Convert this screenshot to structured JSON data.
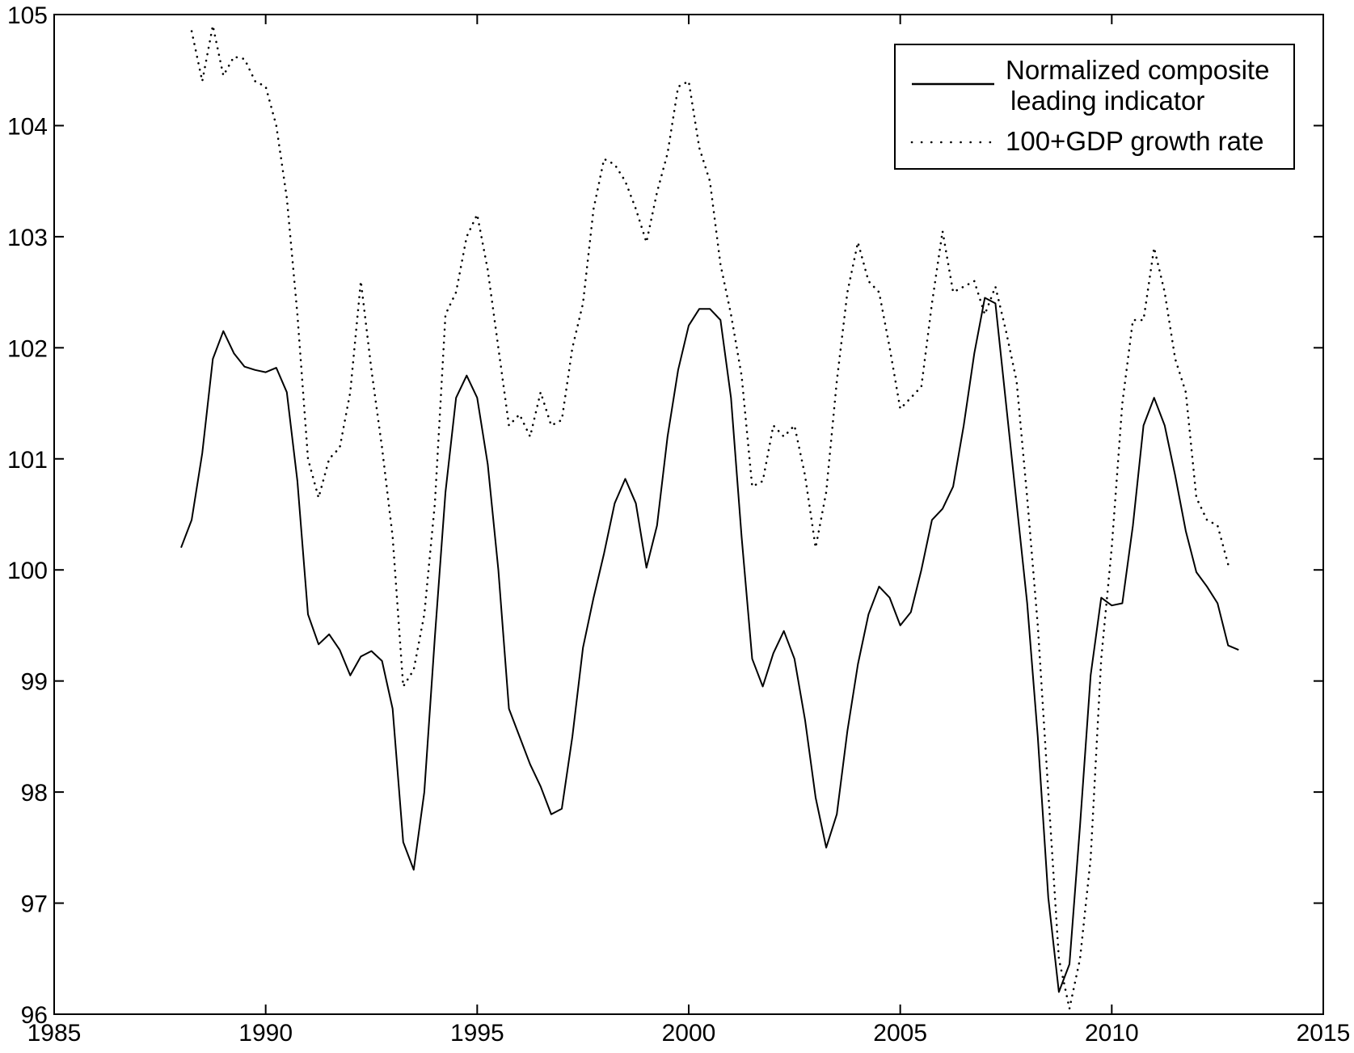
{
  "chart_data": {
    "type": "line",
    "title": "",
    "xlabel": "",
    "ylabel": "",
    "xlim": [
      1985,
      2015
    ],
    "ylim": [
      96,
      105
    ],
    "x_ticks": [
      "1985",
      "1990",
      "1995",
      "2000",
      "2005",
      "2010",
      "2015"
    ],
    "y_ticks": [
      "96",
      "97",
      "98",
      "99",
      "100",
      "101",
      "102",
      "103",
      "104",
      "105"
    ],
    "grid": false,
    "legend": {
      "position": "top-right",
      "entries": [
        {
          "line1": "Normalized composite",
          "line2": "leading indicator"
        },
        {
          "line1": "100+GDP growth rate",
          "line2": ""
        }
      ]
    },
    "series": [
      {
        "name": "Normalized composite leading indicator",
        "style": "solid",
        "color": "#000000",
        "points": [
          [
            1988.0,
            100.2
          ],
          [
            1988.25,
            100.45
          ],
          [
            1988.5,
            101.05
          ],
          [
            1988.75,
            101.9
          ],
          [
            1989.0,
            102.15
          ],
          [
            1989.25,
            101.95
          ],
          [
            1989.5,
            101.83
          ],
          [
            1989.75,
            101.8
          ],
          [
            1990.0,
            101.78
          ],
          [
            1990.25,
            101.82
          ],
          [
            1990.5,
            101.6
          ],
          [
            1990.75,
            100.8
          ],
          [
            1991.0,
            99.6
          ],
          [
            1991.25,
            99.33
          ],
          [
            1991.5,
            99.42
          ],
          [
            1991.75,
            99.28
          ],
          [
            1992.0,
            99.05
          ],
          [
            1992.25,
            99.22
          ],
          [
            1992.5,
            99.27
          ],
          [
            1992.75,
            99.18
          ],
          [
            1993.0,
            98.75
          ],
          [
            1993.25,
            97.55
          ],
          [
            1993.5,
            97.3
          ],
          [
            1993.75,
            98.0
          ],
          [
            1994.0,
            99.4
          ],
          [
            1994.25,
            100.7
          ],
          [
            1994.5,
            101.55
          ],
          [
            1994.75,
            101.75
          ],
          [
            1995.0,
            101.55
          ],
          [
            1995.25,
            100.95
          ],
          [
            1995.5,
            100.0
          ],
          [
            1995.75,
            98.75
          ],
          [
            1996.0,
            98.5
          ],
          [
            1996.25,
            98.25
          ],
          [
            1996.5,
            98.05
          ],
          [
            1996.75,
            97.8
          ],
          [
            1997.0,
            97.85
          ],
          [
            1997.25,
            98.5
          ],
          [
            1997.5,
            99.3
          ],
          [
            1997.75,
            99.75
          ],
          [
            1998.0,
            100.15
          ],
          [
            1998.25,
            100.6
          ],
          [
            1998.5,
            100.82
          ],
          [
            1998.75,
            100.6
          ],
          [
            1999.0,
            100.02
          ],
          [
            1999.25,
            100.4
          ],
          [
            1999.5,
            101.2
          ],
          [
            1999.75,
            101.8
          ],
          [
            2000.0,
            102.2
          ],
          [
            2000.25,
            102.35
          ],
          [
            2000.5,
            102.35
          ],
          [
            2000.75,
            102.25
          ],
          [
            2001.0,
            101.55
          ],
          [
            2001.25,
            100.3
          ],
          [
            2001.5,
            99.2
          ],
          [
            2001.75,
            98.95
          ],
          [
            2002.0,
            99.25
          ],
          [
            2002.25,
            99.45
          ],
          [
            2002.5,
            99.2
          ],
          [
            2002.75,
            98.65
          ],
          [
            2003.0,
            97.95
          ],
          [
            2003.25,
            97.5
          ],
          [
            2003.5,
            97.8
          ],
          [
            2003.75,
            98.55
          ],
          [
            2004.0,
            99.15
          ],
          [
            2004.25,
            99.6
          ],
          [
            2004.5,
            99.85
          ],
          [
            2004.75,
            99.75
          ],
          [
            2005.0,
            99.5
          ],
          [
            2005.25,
            99.62
          ],
          [
            2005.5,
            100.0
          ],
          [
            2005.75,
            100.45
          ],
          [
            2006.0,
            100.55
          ],
          [
            2006.25,
            100.75
          ],
          [
            2006.5,
            101.3
          ],
          [
            2006.75,
            101.95
          ],
          [
            2007.0,
            102.45
          ],
          [
            2007.25,
            102.4
          ],
          [
            2007.5,
            101.5
          ],
          [
            2007.75,
            100.6
          ],
          [
            2008.0,
            99.7
          ],
          [
            2008.25,
            98.5
          ],
          [
            2008.5,
            97.05
          ],
          [
            2008.75,
            96.2
          ],
          [
            2009.0,
            96.45
          ],
          [
            2009.25,
            97.7
          ],
          [
            2009.5,
            99.05
          ],
          [
            2009.75,
            99.75
          ],
          [
            2010.0,
            99.68
          ],
          [
            2010.25,
            99.7
          ],
          [
            2010.5,
            100.4
          ],
          [
            2010.75,
            101.3
          ],
          [
            2011.0,
            101.55
          ],
          [
            2011.25,
            101.3
          ],
          [
            2011.5,
            100.85
          ],
          [
            2011.75,
            100.35
          ],
          [
            2012.0,
            99.98
          ],
          [
            2012.25,
            99.85
          ],
          [
            2012.5,
            99.7
          ],
          [
            2012.75,
            99.32
          ],
          [
            2013.0,
            99.28
          ]
        ]
      },
      {
        "name": "100+GDP growth rate",
        "style": "dotted",
        "color": "#000000",
        "points": [
          [
            1988.25,
            104.85
          ],
          [
            1988.5,
            104.4
          ],
          [
            1988.75,
            104.9
          ],
          [
            1989.0,
            104.45
          ],
          [
            1989.25,
            104.62
          ],
          [
            1989.5,
            104.6
          ],
          [
            1989.75,
            104.4
          ],
          [
            1990.0,
            104.35
          ],
          [
            1990.25,
            104.0
          ],
          [
            1990.5,
            103.35
          ],
          [
            1990.75,
            102.3
          ],
          [
            1991.0,
            101.0
          ],
          [
            1991.25,
            100.65
          ],
          [
            1991.5,
            101.0
          ],
          [
            1991.75,
            101.1
          ],
          [
            1992.0,
            101.6
          ],
          [
            1992.25,
            102.6
          ],
          [
            1992.5,
            101.8
          ],
          [
            1992.75,
            101.1
          ],
          [
            1993.0,
            100.3
          ],
          [
            1993.25,
            98.95
          ],
          [
            1993.5,
            99.1
          ],
          [
            1993.75,
            99.6
          ],
          [
            1994.0,
            100.6
          ],
          [
            1994.25,
            102.3
          ],
          [
            1994.5,
            102.5
          ],
          [
            1994.75,
            103.0
          ],
          [
            1995.0,
            103.2
          ],
          [
            1995.25,
            102.7
          ],
          [
            1995.5,
            102.0
          ],
          [
            1995.75,
            101.3
          ],
          [
            1996.0,
            101.4
          ],
          [
            1996.25,
            101.2
          ],
          [
            1996.5,
            101.6
          ],
          [
            1996.75,
            101.3
          ],
          [
            1997.0,
            101.35
          ],
          [
            1997.25,
            102.0
          ],
          [
            1997.5,
            102.4
          ],
          [
            1997.75,
            103.25
          ],
          [
            1998.0,
            103.7
          ],
          [
            1998.25,
            103.65
          ],
          [
            1998.5,
            103.5
          ],
          [
            1998.75,
            103.25
          ],
          [
            1999.0,
            102.95
          ],
          [
            1999.25,
            103.4
          ],
          [
            1999.5,
            103.75
          ],
          [
            1999.75,
            104.35
          ],
          [
            2000.0,
            104.4
          ],
          [
            2000.25,
            103.8
          ],
          [
            2000.5,
            103.5
          ],
          [
            2000.75,
            102.75
          ],
          [
            2001.0,
            102.3
          ],
          [
            2001.25,
            101.75
          ],
          [
            2001.5,
            100.75
          ],
          [
            2001.75,
            100.8
          ],
          [
            2002.0,
            101.3
          ],
          [
            2002.25,
            101.2
          ],
          [
            2002.5,
            101.3
          ],
          [
            2002.75,
            100.85
          ],
          [
            2003.0,
            100.2
          ],
          [
            2003.25,
            100.7
          ],
          [
            2003.5,
            101.7
          ],
          [
            2003.75,
            102.5
          ],
          [
            2004.0,
            102.95
          ],
          [
            2004.25,
            102.6
          ],
          [
            2004.5,
            102.5
          ],
          [
            2004.75,
            102.0
          ],
          [
            2005.0,
            101.45
          ],
          [
            2005.25,
            101.55
          ],
          [
            2005.5,
            101.65
          ],
          [
            2005.75,
            102.4
          ],
          [
            2006.0,
            103.05
          ],
          [
            2006.25,
            102.5
          ],
          [
            2006.5,
            102.55
          ],
          [
            2006.75,
            102.6
          ],
          [
            2007.0,
            102.3
          ],
          [
            2007.25,
            102.55
          ],
          [
            2007.5,
            102.15
          ],
          [
            2007.75,
            101.7
          ],
          [
            2008.0,
            100.65
          ],
          [
            2008.25,
            99.5
          ],
          [
            2008.5,
            98.0
          ],
          [
            2008.75,
            96.5
          ],
          [
            2009.0,
            96.05
          ],
          [
            2009.25,
            96.5
          ],
          [
            2009.5,
            97.4
          ],
          [
            2009.75,
            99.2
          ],
          [
            2010.0,
            100.2
          ],
          [
            2010.25,
            101.5
          ],
          [
            2010.5,
            102.25
          ],
          [
            2010.75,
            102.25
          ],
          [
            2011.0,
            102.9
          ],
          [
            2011.25,
            102.5
          ],
          [
            2011.5,
            101.9
          ],
          [
            2011.75,
            101.6
          ],
          [
            2012.0,
            100.65
          ],
          [
            2012.25,
            100.45
          ],
          [
            2012.5,
            100.4
          ],
          [
            2012.75,
            100.05
          ]
        ]
      }
    ]
  }
}
